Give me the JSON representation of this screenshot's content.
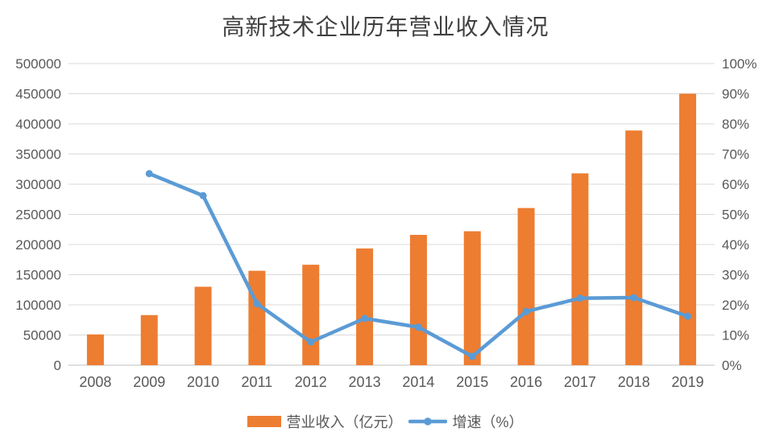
{
  "chart_data": {
    "type": "combo",
    "title": "高新技术企业历年营业收入情况",
    "categories": [
      "2008",
      "2009",
      "2010",
      "2011",
      "2012",
      "2013",
      "2014",
      "2015",
      "2016",
      "2017",
      "2018",
      "2019"
    ],
    "series": [
      {
        "name": "营业收入（亿元）",
        "type": "bar",
        "axis": "left",
        "color": "#ED7D31",
        "values": [
          51000,
          83000,
          130000,
          156500,
          166500,
          193500,
          216000,
          222000,
          260500,
          318000,
          389000,
          450000
        ]
      },
      {
        "name": "增速（%）",
        "type": "line",
        "axis": "right",
        "color": "#5B9BD5",
        "values": [
          null,
          63.5,
          56.2,
          20.4,
          7.7,
          15.5,
          12.6,
          2.9,
          17.8,
          22.2,
          22.4,
          16.2
        ]
      }
    ],
    "left_axis": {
      "min": 0,
      "max": 500000,
      "step": 50000,
      "tick_labels": [
        "0",
        "50000",
        "100000",
        "150000",
        "200000",
        "250000",
        "300000",
        "350000",
        "400000",
        "450000",
        "500000"
      ]
    },
    "right_axis": {
      "min": 0,
      "max": 100,
      "step": 10,
      "tick_labels": [
        "0%",
        "10%",
        "20%",
        "30%",
        "40%",
        "50%",
        "60%",
        "70%",
        "80%",
        "90%",
        "100%"
      ]
    },
    "grid": true,
    "legend_position": "bottom",
    "colors": {
      "bar": "#ED7D31",
      "line": "#5B9BD5",
      "gridline": "#D9D9D9",
      "axis_line": "#BFBFBF",
      "axis_text": "#595959",
      "title_text": "#404040",
      "background": "#FFFFFF"
    }
  }
}
